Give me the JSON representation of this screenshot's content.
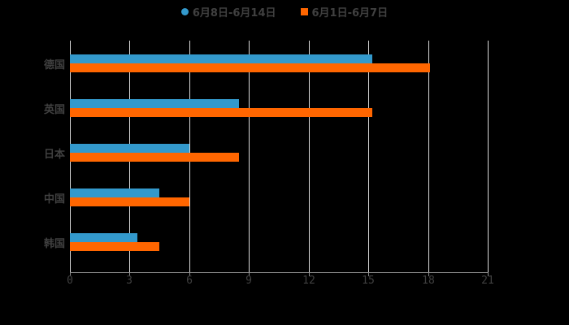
{
  "chart_data": {
    "type": "bar",
    "orientation": "horizontal",
    "title": "",
    "xlabel": "",
    "ylabel": "",
    "categories": [
      "德国",
      "英国",
      "日本",
      "中国",
      "韩国"
    ],
    "series": [
      {
        "name": "6月8日-6月14日",
        "color": "#3399cc",
        "values": [
          15.2,
          8.5,
          6.0,
          4.5,
          3.4
        ]
      },
      {
        "name": "6月1日-6月7日",
        "color": "#ff6600",
        "values": [
          18.1,
          15.2,
          8.5,
          6.0,
          4.5
        ]
      }
    ],
    "xlim": [
      0,
      21
    ],
    "xticks": [
      0,
      3,
      6,
      9,
      12,
      15,
      18,
      21
    ],
    "grid": "vertical",
    "legend_position": "top"
  },
  "legend": {
    "series1": "6月8日-6月14日",
    "series2": "6月1日-6月7日"
  },
  "colors": {
    "series1": "#3399cc",
    "series2": "#ff6600",
    "text": "#404040",
    "grid": "#d9d9d9"
  }
}
